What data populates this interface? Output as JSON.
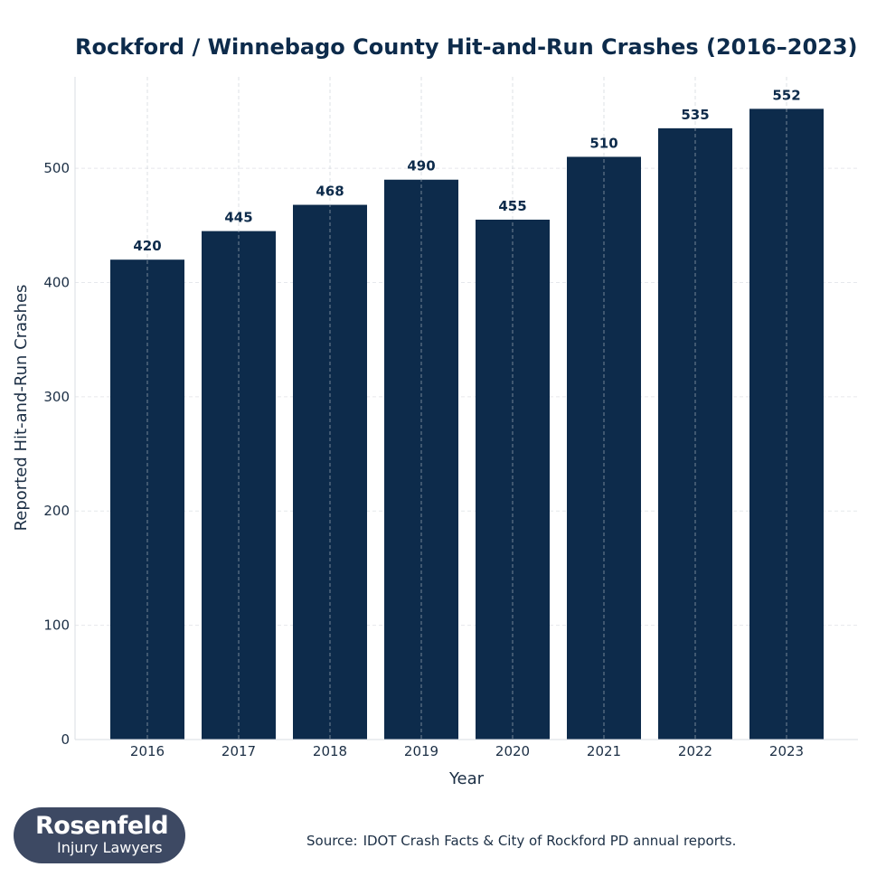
{
  "chart_data": {
    "type": "bar",
    "title": "Rockford / Winnebago County Hit-and-Run Crashes (2016–2023)",
    "xlabel": "Year",
    "ylabel": "Reported Hit-and-Run Crashes",
    "categories": [
      "2016",
      "2017",
      "2018",
      "2019",
      "2020",
      "2021",
      "2022",
      "2023"
    ],
    "values": [
      420,
      445,
      468,
      490,
      455,
      510,
      535,
      552
    ],
    "data_labels": [
      "420",
      "445",
      "468",
      "490",
      "455",
      "510",
      "535",
      "552"
    ],
    "ylim": [
      0,
      580
    ],
    "yticks": [
      0,
      100,
      200,
      300,
      400,
      500
    ],
    "grid": true,
    "bar_color": "#0d2b4b"
  },
  "logo": {
    "name": "Rosenfeld",
    "sub": "Injury Lawyers",
    "color": "#3d4963"
  },
  "source": {
    "label": "Source:",
    "text": "IDOT Crash Facts & City of Rockford PD annual reports."
  }
}
